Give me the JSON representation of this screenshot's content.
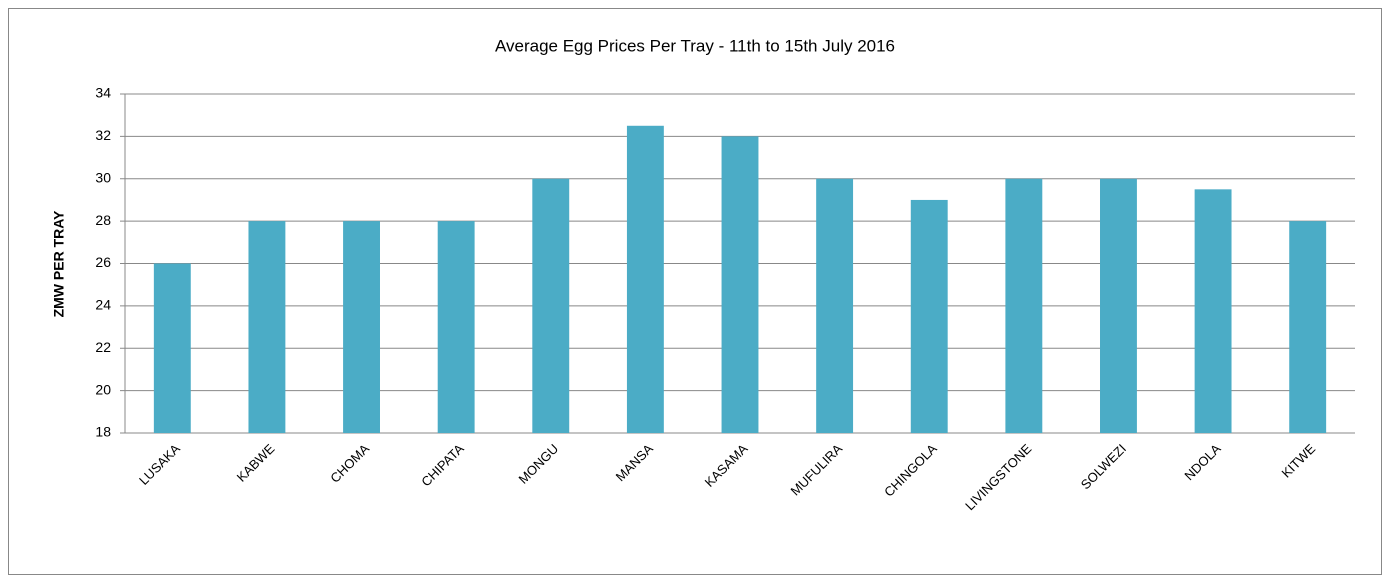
{
  "chart_data": {
    "type": "bar",
    "title": "Average Egg Prices Per Tray - 11th to  15th July 2016",
    "y_label": "ZMW  PER TRAY",
    "categories": [
      "LUSAKA",
      "KABWE",
      "CHOMA",
      "CHIPATA",
      "MONGU",
      "MANSA",
      "KASAMA",
      "MUFULIRA",
      "CHINGOLA",
      "LIVINGSTONE",
      "SOLWEZI",
      "NDOLA",
      "KITWE"
    ],
    "values": [
      26,
      28,
      28,
      28,
      30,
      32.5,
      32,
      30,
      29,
      30,
      30,
      29.5,
      28
    ],
    "color": "#4bacc6",
    "ylim": [
      18,
      34
    ],
    "yticks": [
      18,
      20,
      22,
      24,
      26,
      28,
      30,
      32,
      34
    ],
    "grid": true
  }
}
